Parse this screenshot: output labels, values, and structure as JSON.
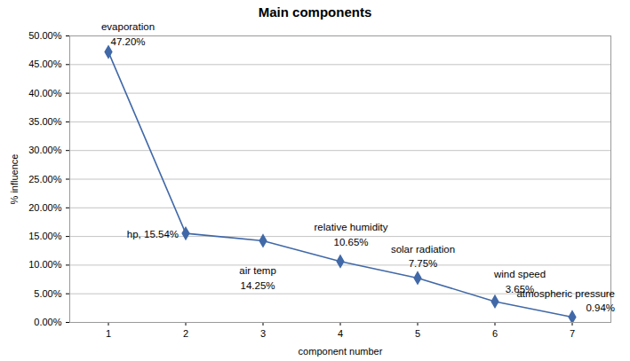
{
  "chart_data": {
    "type": "line",
    "title": "Main components",
    "x_label": "component number",
    "y_label": "% influence",
    "x": [
      1,
      2,
      3,
      4,
      5,
      6,
      7
    ],
    "values": [
      47.2,
      15.54,
      14.25,
      10.65,
      7.75,
      3.65,
      0.94
    ],
    "color": "#4169a8",
    "marker": "diamond",
    "grid": true,
    "xlim": [
      0.5,
      7.5
    ],
    "xticks": [
      1,
      2,
      3,
      4,
      5,
      6,
      7
    ],
    "ylim": [
      0,
      50
    ],
    "yticks": [
      {
        "value": 0,
        "label": "0.00%"
      },
      {
        "value": 5,
        "label": "5.00%"
      },
      {
        "value": 10,
        "label": "10.00%"
      },
      {
        "value": 15,
        "label": "15.00%"
      },
      {
        "value": 20,
        "label": "20.00%"
      },
      {
        "value": 25,
        "label": "25.00%"
      },
      {
        "value": 30,
        "label": "30.00%"
      },
      {
        "value": 35,
        "label": "35.00%"
      },
      {
        "value": 40,
        "label": "40.00%"
      },
      {
        "value": 45,
        "label": "45.00%"
      },
      {
        "value": 50,
        "label": "50.00%"
      }
    ],
    "annotations": [
      {
        "x": 1,
        "text": [
          "evaporation",
          "47.20%"
        ]
      },
      {
        "x": 2,
        "text": [
          "hp, 15.54%"
        ]
      },
      {
        "x": 3,
        "text": [
          "air temp",
          "14.25%"
        ]
      },
      {
        "x": 4,
        "text": [
          "relative humidity",
          "10.65%"
        ]
      },
      {
        "x": 5,
        "text": [
          "solar radiation",
          "7.75%"
        ]
      },
      {
        "x": 6,
        "text": [
          "wind speed",
          "3.65%"
        ]
      },
      {
        "x": 7,
        "text": [
          "atmospheric pressure",
          "0.94%"
        ]
      }
    ]
  }
}
